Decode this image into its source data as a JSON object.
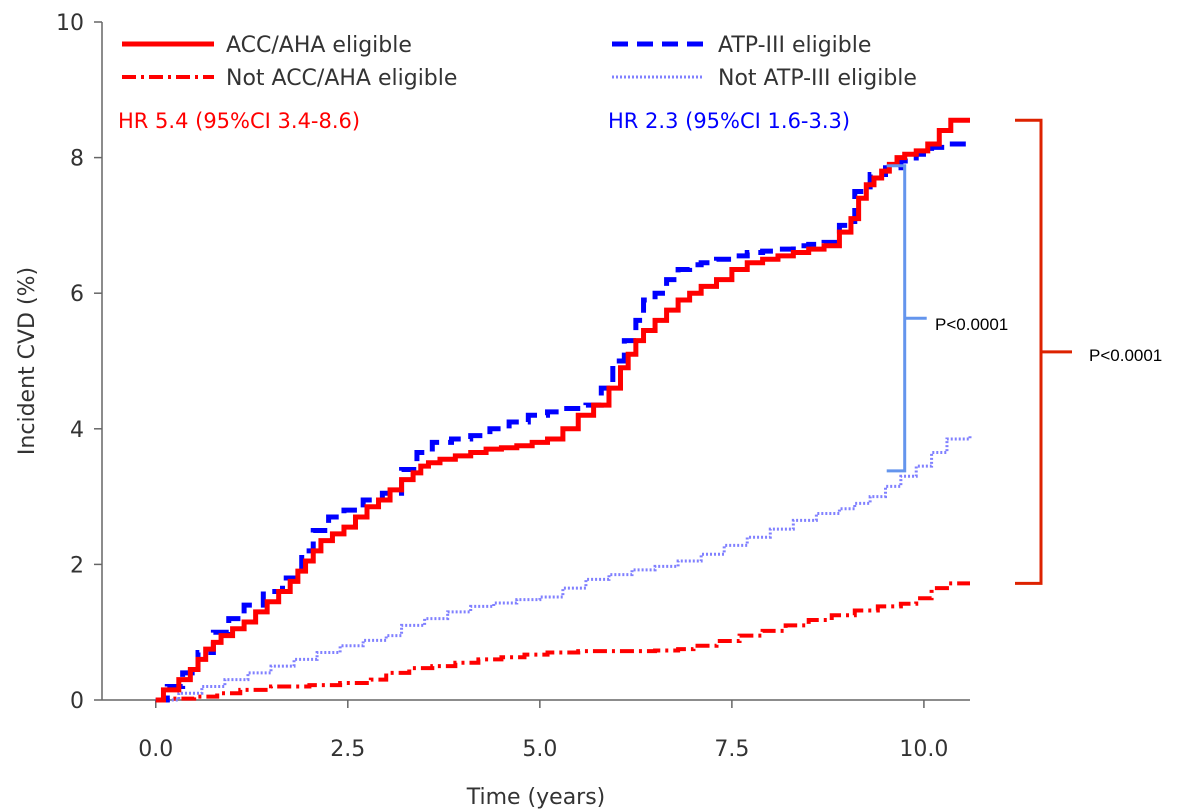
{
  "chart_data": {
    "type": "line",
    "xlabel": "Time (years)",
    "ylabel": "Incident CVD (%)",
    "xlim": [
      -0.7,
      10.6
    ],
    "ylim": [
      0,
      10
    ],
    "xticks": [
      0.0,
      2.5,
      5.0,
      7.5,
      10.0
    ],
    "xtick_labels": [
      "0.0",
      "2.5",
      "5.0",
      "7.5",
      "10.0"
    ],
    "yticks": [
      0,
      2,
      4,
      6,
      8,
      10
    ],
    "ytick_labels": [
      "0",
      "2",
      "4",
      "6",
      "8",
      "10"
    ],
    "grid": false,
    "legend_position": "top",
    "series": [
      {
        "name": "ACC/AHA eligible",
        "color": "#ff0000",
        "dash": "solid",
        "x": [
          0.0,
          0.1,
          0.3,
          0.45,
          0.55,
          0.65,
          0.75,
          0.85,
          1.0,
          1.15,
          1.3,
          1.45,
          1.6,
          1.75,
          1.85,
          1.95,
          2.05,
          2.15,
          2.3,
          2.45,
          2.6,
          2.75,
          2.9,
          3.05,
          3.2,
          3.35,
          3.45,
          3.55,
          3.7,
          3.9,
          4.1,
          4.3,
          4.5,
          4.7,
          4.9,
          5.1,
          5.3,
          5.5,
          5.7,
          5.9,
          6.05,
          6.15,
          6.25,
          6.35,
          6.5,
          6.65,
          6.8,
          6.95,
          7.1,
          7.3,
          7.5,
          7.7,
          7.9,
          8.1,
          8.3,
          8.5,
          8.7,
          8.9,
          9.05,
          9.15,
          9.25,
          9.35,
          9.45,
          9.55,
          9.65,
          9.75,
          9.9,
          10.05,
          10.2,
          10.35,
          10.6
        ],
        "y": [
          0.0,
          0.15,
          0.3,
          0.45,
          0.6,
          0.75,
          0.85,
          0.95,
          1.05,
          1.15,
          1.3,
          1.45,
          1.6,
          1.75,
          1.9,
          2.05,
          2.2,
          2.35,
          2.45,
          2.55,
          2.7,
          2.85,
          2.95,
          3.1,
          3.25,
          3.35,
          3.45,
          3.5,
          3.55,
          3.6,
          3.65,
          3.7,
          3.72,
          3.75,
          3.8,
          3.85,
          4.0,
          4.2,
          4.35,
          4.6,
          4.9,
          5.1,
          5.3,
          5.45,
          5.6,
          5.75,
          5.9,
          6.0,
          6.1,
          6.2,
          6.35,
          6.45,
          6.5,
          6.55,
          6.6,
          6.65,
          6.7,
          6.9,
          7.1,
          7.4,
          7.6,
          7.7,
          7.8,
          7.9,
          8.0,
          8.05,
          8.1,
          8.2,
          8.4,
          8.55,
          8.55
        ]
      },
      {
        "name": "Not ACC/AHA eligible",
        "color": "#ff0000",
        "dash": "dashdot",
        "x": [
          0.0,
          0.2,
          0.5,
          0.8,
          1.1,
          1.5,
          2.0,
          2.4,
          2.8,
          3.0,
          3.3,
          3.6,
          3.9,
          4.2,
          4.5,
          4.8,
          5.1,
          5.5,
          6.0,
          6.5,
          6.8,
          7.0,
          7.3,
          7.6,
          7.9,
          8.2,
          8.5,
          8.8,
          9.1,
          9.4,
          9.7,
          9.9,
          10.1,
          10.3,
          10.6
        ],
        "y": [
          0.0,
          0.02,
          0.05,
          0.1,
          0.15,
          0.2,
          0.22,
          0.25,
          0.3,
          0.4,
          0.47,
          0.5,
          0.55,
          0.6,
          0.63,
          0.67,
          0.7,
          0.72,
          0.72,
          0.73,
          0.75,
          0.8,
          0.87,
          0.95,
          1.02,
          1.1,
          1.18,
          1.25,
          1.32,
          1.38,
          1.42,
          1.5,
          1.65,
          1.72,
          1.72
        ]
      },
      {
        "name": "ATP-III eligible",
        "color": "#0000ff",
        "dash": "dash",
        "x": [
          0.0,
          0.15,
          0.35,
          0.55,
          0.75,
          0.95,
          1.15,
          1.4,
          1.65,
          1.9,
          2.05,
          2.25,
          2.45,
          2.7,
          2.95,
          3.2,
          3.4,
          3.6,
          3.85,
          4.1,
          4.35,
          4.6,
          4.85,
          5.1,
          5.35,
          5.6,
          5.8,
          5.95,
          6.1,
          6.25,
          6.35,
          6.5,
          6.65,
          6.8,
          6.95,
          7.1,
          7.3,
          7.5,
          7.7,
          7.9,
          8.1,
          8.3,
          8.5,
          8.7,
          8.9,
          9.1,
          9.3,
          9.5,
          9.7,
          9.9,
          10.1,
          10.3,
          10.6
        ],
        "y": [
          0.0,
          0.2,
          0.4,
          0.7,
          1.0,
          1.2,
          1.4,
          1.6,
          1.8,
          2.2,
          2.5,
          2.7,
          2.8,
          2.95,
          3.05,
          3.4,
          3.65,
          3.8,
          3.85,
          3.9,
          4.0,
          4.1,
          4.2,
          4.25,
          4.3,
          4.35,
          4.6,
          5.0,
          5.3,
          5.6,
          5.9,
          6.0,
          6.2,
          6.35,
          6.42,
          6.45,
          6.5,
          6.55,
          6.6,
          6.62,
          6.65,
          6.7,
          6.72,
          6.75,
          7.0,
          7.5,
          7.75,
          7.85,
          7.95,
          8.05,
          8.15,
          8.2,
          8.2
        ]
      },
      {
        "name": "Not ATP-III eligible",
        "color": "#8080ff",
        "dash": "dot",
        "x": [
          0.0,
          0.3,
          0.6,
          0.9,
          1.2,
          1.5,
          1.8,
          2.1,
          2.4,
          2.7,
          3.0,
          3.2,
          3.5,
          3.8,
          4.1,
          4.4,
          4.7,
          5.0,
          5.3,
          5.6,
          5.9,
          6.2,
          6.5,
          6.8,
          7.1,
          7.4,
          7.7,
          8.0,
          8.3,
          8.6,
          8.9,
          9.1,
          9.3,
          9.5,
          9.7,
          9.9,
          10.1,
          10.3,
          10.6
        ],
        "y": [
          0.0,
          0.1,
          0.2,
          0.3,
          0.4,
          0.5,
          0.6,
          0.7,
          0.8,
          0.88,
          0.95,
          1.1,
          1.2,
          1.3,
          1.38,
          1.43,
          1.48,
          1.52,
          1.65,
          1.78,
          1.85,
          1.92,
          1.97,
          2.05,
          2.15,
          2.28,
          2.4,
          2.52,
          2.65,
          2.75,
          2.82,
          2.9,
          3.0,
          3.15,
          3.3,
          3.45,
          3.65,
          3.85,
          3.9
        ]
      }
    ],
    "annotations": {
      "hr_accaha": "HR 5.4 (95%CI 3.4-8.6)",
      "hr_atp": "HR 2.3 (95%CI 1.6-3.3)",
      "p_atp": "P<0.0001",
      "p_accaha": "P<0.0001",
      "atp_bracket_x": 9.75,
      "atp_bracket_y": [
        3.38,
        7.88
      ],
      "accaha_bracket_y": [
        1.72,
        8.55
      ],
      "atp_bracket_color": "#6495ed",
      "accaha_bracket_color": "#dd2200"
    }
  }
}
